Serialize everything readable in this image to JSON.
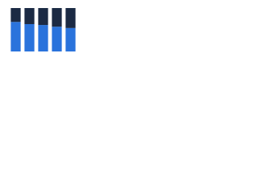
{
  "chart_data": {
    "type": "stacked_bar",
    "categories": [
      null,
      null,
      null,
      null,
      null
    ],
    "series": [
      {
        "color": "#2a73dc",
        "values": [
          68,
          63,
          61,
          57,
          54
        ]
      },
      {
        "color": "#1b2a44",
        "values": [
          32,
          37,
          39,
          43,
          46
        ]
      }
    ],
    "ylim": [
      0,
      100
    ]
  }
}
